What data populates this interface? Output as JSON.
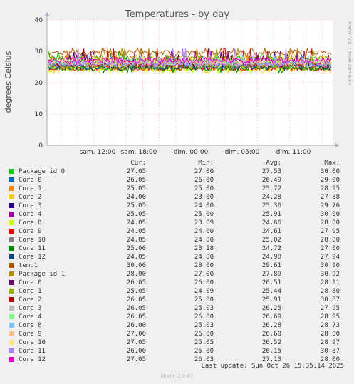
{
  "title": "Temperatures - by day",
  "ylabel": "degrees Celsius",
  "watermark": "RRDTOOL / TOBI OETIKER",
  "footer": "Munin 2.0.67",
  "last_update": "Last update: Sun Oct 26 15:35:14 2025",
  "legend_headers": {
    "cur": "Cur:",
    "min": "Min:",
    "avg": "Avg:",
    "max": "Max:"
  },
  "colors": {
    "background": "#f0f0f0",
    "plot_bg": "#ffffff",
    "grid": "#ff9999",
    "axis": "#aaaaaa"
  },
  "chart_data": {
    "type": "line",
    "title": "Temperatures - by day",
    "ylabel": "degrees Celsius",
    "ylim": [
      0,
      40
    ],
    "yticks": [
      0,
      10,
      20,
      30,
      40
    ],
    "xticks": [
      "sam. 12:00",
      "sam. 18:00",
      "dim. 00:00",
      "dim. 05:00",
      "dim. 11:00"
    ],
    "grid": true,
    "series": [
      {
        "name": "Package id 0",
        "color": "#00cc00",
        "cur": "27.05",
        "min": "27.00",
        "avg": "27.53",
        "max": "30.00"
      },
      {
        "name": "Core 0",
        "color": "#0066b3",
        "cur": "26.05",
        "min": "26.00",
        "avg": "26.49",
        "max": "29.00"
      },
      {
        "name": "Core 1",
        "color": "#ff8000",
        "cur": "25.05",
        "min": "25.00",
        "avg": "25.72",
        "max": "28.95"
      },
      {
        "name": "Core 2",
        "color": "#ffcc00",
        "cur": "24.00",
        "min": "23.00",
        "avg": "24.28",
        "max": "27.88"
      },
      {
        "name": "Core 3",
        "color": "#330099",
        "cur": "25.05",
        "min": "24.00",
        "avg": "25.36",
        "max": "29.76"
      },
      {
        "name": "Core 4",
        "color": "#990099",
        "cur": "25.05",
        "min": "25.00",
        "avg": "25.91",
        "max": "30.00"
      },
      {
        "name": "Core 8",
        "color": "#ccff00",
        "cur": "24.05",
        "min": "23.09",
        "avg": "24.66",
        "max": "28.00"
      },
      {
        "name": "Core 9",
        "color": "#ff0000",
        "cur": "24.05",
        "min": "24.00",
        "avg": "24.61",
        "max": "27.95"
      },
      {
        "name": "Core 10",
        "color": "#808080",
        "cur": "24.05",
        "min": "24.00",
        "avg": "25.02",
        "max": "28.00"
      },
      {
        "name": "Core 11",
        "color": "#008f00",
        "cur": "25.00",
        "min": "23.18",
        "avg": "24.72",
        "max": "27.00"
      },
      {
        "name": "Core 12",
        "color": "#00487d",
        "cur": "24.05",
        "min": "24.00",
        "avg": "24.98",
        "max": "27.94"
      },
      {
        "name": "temp1",
        "color": "#b35a00",
        "cur": "30.00",
        "min": "28.00",
        "avg": "29.61",
        "max": "30.90"
      },
      {
        "name": "Package id 1",
        "color": "#b38f00",
        "cur": "28.00",
        "min": "27.00",
        "avg": "27.89",
        "max": "30.92"
      },
      {
        "name": "Core 0",
        "color": "#6b006b",
        "cur": "26.05",
        "min": "26.00",
        "avg": "26.51",
        "max": "28.91"
      },
      {
        "name": "Core 1",
        "color": "#8fb300",
        "cur": "25.05",
        "min": "24.09",
        "avg": "25.44",
        "max": "28.80"
      },
      {
        "name": "Core 2",
        "color": "#b30000",
        "cur": "26.05",
        "min": "25.00",
        "avg": "25.91",
        "max": "30.87"
      },
      {
        "name": "Core 3",
        "color": "#bebebe",
        "cur": "26.05",
        "min": "25.03",
        "avg": "26.25",
        "max": "27.95"
      },
      {
        "name": "Core 4",
        "color": "#80ff80",
        "cur": "26.05",
        "min": "26.00",
        "avg": "26.69",
        "max": "28.95"
      },
      {
        "name": "Core 8",
        "color": "#80c9ff",
        "cur": "26.00",
        "min": "25.03",
        "avg": "26.28",
        "max": "28.73"
      },
      {
        "name": "Core 9",
        "color": "#ffc080",
        "cur": "27.00",
        "min": "26.00",
        "avg": "26.60",
        "max": "28.00"
      },
      {
        "name": "Core 10",
        "color": "#ffe680",
        "cur": "27.05",
        "min": "25.05",
        "avg": "26.52",
        "max": "28.97"
      },
      {
        "name": "Core 11",
        "color": "#aa80ff",
        "cur": "26.00",
        "min": "25.00",
        "avg": "26.15",
        "max": "30.87"
      },
      {
        "name": "Core 12",
        "color": "#ee00cc",
        "cur": "27.05",
        "min": "26.03",
        "avg": "27.10",
        "max": "28.00"
      }
    ]
  }
}
